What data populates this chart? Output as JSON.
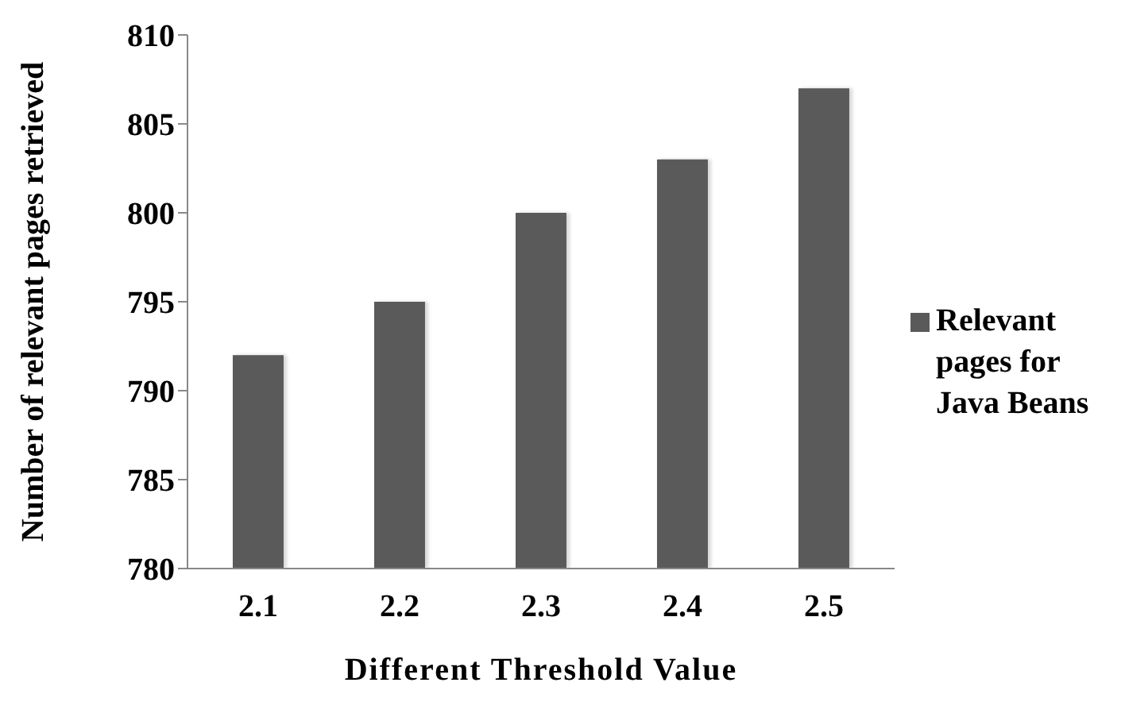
{
  "chart_data": {
    "type": "bar",
    "xlabel": "Different Threshold Value",
    "ylabel": "Number of relevant pages retrieved",
    "categories": [
      "2.1",
      "2.2",
      "2.3",
      "2.4",
      "2.5"
    ],
    "series": [
      {
        "name": "Relevant pages for Java Beans",
        "color": "#5a5a5a",
        "values": [
          792,
          795,
          800,
          803,
          807
        ]
      }
    ],
    "ylim": [
      780,
      810
    ],
    "yticks": [
      780,
      785,
      790,
      795,
      800,
      805,
      810
    ],
    "grid": false,
    "legend": "right"
  }
}
